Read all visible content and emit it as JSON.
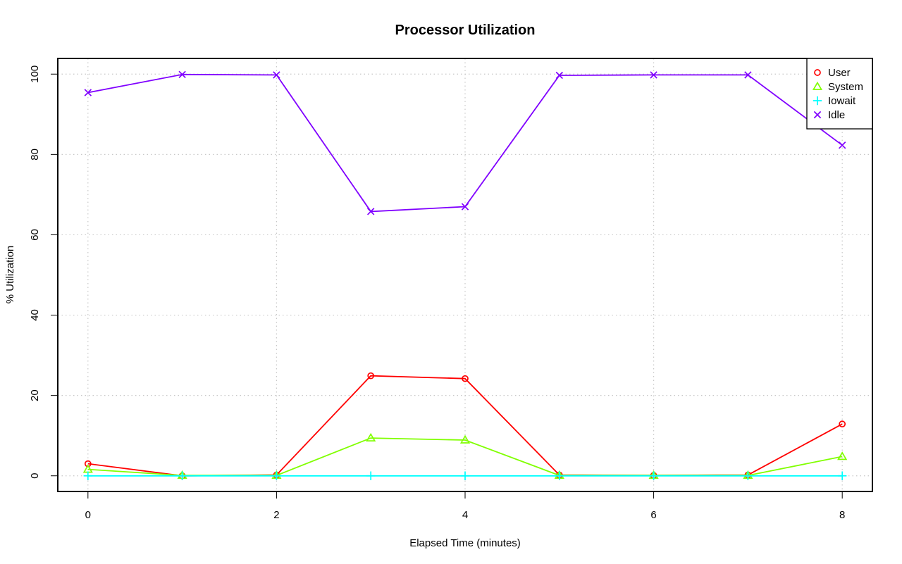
{
  "chart_data": {
    "type": "line",
    "title": "Processor Utilization",
    "xlabel": "Elapsed Time (minutes)",
    "ylabel": "% Utilization",
    "x": [
      0,
      1,
      2,
      3,
      4,
      5,
      6,
      7,
      8
    ],
    "xlim": [
      -0.32,
      8.32
    ],
    "ylim": [
      -3.9,
      103.9
    ],
    "x_ticks": [
      0,
      2,
      4,
      6,
      8
    ],
    "y_ticks": [
      0,
      20,
      40,
      60,
      80,
      100
    ],
    "grid": true,
    "legend_position": "top-right",
    "series": [
      {
        "name": "User",
        "color": "#ff0000",
        "marker": "circle",
        "values": [
          3.0,
          0.0,
          0.2,
          24.9,
          24.2,
          0.2,
          0.1,
          0.2,
          12.9
        ]
      },
      {
        "name": "System",
        "color": "#80ff00",
        "marker": "triangle",
        "values": [
          1.6,
          0.1,
          0.1,
          9.4,
          8.9,
          0.1,
          0.1,
          0.1,
          4.8
        ]
      },
      {
        "name": "Iowait",
        "color": "#00ffff",
        "marker": "plus",
        "values": [
          0.0,
          0.0,
          0.0,
          0.0,
          0.0,
          0.0,
          0.0,
          0.0,
          0.0
        ]
      },
      {
        "name": "Idle",
        "color": "#8000ff",
        "marker": "cross",
        "values": [
          95.4,
          99.9,
          99.8,
          65.8,
          67.0,
          99.7,
          99.8,
          99.8,
          82.3
        ]
      }
    ]
  }
}
